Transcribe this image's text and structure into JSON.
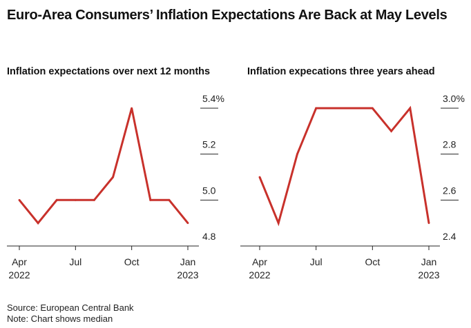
{
  "header": {
    "title": "Euro-Area Consumers’ Inflation Expectations Are Back at May Levels"
  },
  "footer": {
    "source": "Source: European Central Bank",
    "note": "Note: Chart shows median"
  },
  "colors": {
    "line": "#c8312b",
    "axis": "#222222",
    "text": "#111111"
  },
  "chart_data": [
    {
      "type": "line",
      "title": "Inflation expectations over next 12 months",
      "x": [
        "2022-04",
        "2022-05",
        "2022-06",
        "2022-07",
        "2022-08",
        "2022-09",
        "2022-10",
        "2022-11",
        "2022-12",
        "2023-01"
      ],
      "series": [
        {
          "values": [
            5.0,
            4.9,
            5.0,
            5.0,
            5.0,
            5.1,
            5.4,
            5.0,
            5.0,
            4.9
          ]
        }
      ],
      "xticks": [
        {
          "x": "2022-04",
          "label": "Apr",
          "sublabel": "2022"
        },
        {
          "x": "2022-07",
          "label": "Jul",
          "sublabel": ""
        },
        {
          "x": "2022-10",
          "label": "Oct",
          "sublabel": ""
        },
        {
          "x": "2023-01",
          "label": "Jan",
          "sublabel": "2023"
        }
      ],
      "yticks": [
        {
          "value": 4.8,
          "label": "4.8"
        },
        {
          "value": 5.0,
          "label": "5.0"
        },
        {
          "value": 5.2,
          "label": "5.2"
        },
        {
          "value": 5.4,
          "label": "5.4%"
        }
      ],
      "ylim": [
        4.8,
        5.4
      ],
      "xlabel": "",
      "ylabel": "",
      "grid": false,
      "y_axis_side": "right"
    },
    {
      "type": "line",
      "title": "Inflation expecations three years ahead",
      "x": [
        "2022-04",
        "2022-05",
        "2022-06",
        "2022-07",
        "2022-08",
        "2022-09",
        "2022-10",
        "2022-11",
        "2022-12",
        "2023-01"
      ],
      "series": [
        {
          "values": [
            2.7,
            2.5,
            2.8,
            3.0,
            3.0,
            3.0,
            3.0,
            2.9,
            3.0,
            2.5
          ]
        }
      ],
      "xticks": [
        {
          "x": "2022-04",
          "label": "Apr",
          "sublabel": "2022"
        },
        {
          "x": "2022-07",
          "label": "Jul",
          "sublabel": ""
        },
        {
          "x": "2022-10",
          "label": "Oct",
          "sublabel": ""
        },
        {
          "x": "2023-01",
          "label": "Jan",
          "sublabel": "2023"
        }
      ],
      "yticks": [
        {
          "value": 2.4,
          "label": "2.4"
        },
        {
          "value": 2.6,
          "label": "2.6"
        },
        {
          "value": 2.8,
          "label": "2.8"
        },
        {
          "value": 3.0,
          "label": "3.0%"
        }
      ],
      "ylim": [
        2.4,
        3.0
      ],
      "xlabel": "",
      "ylabel": "",
      "grid": false,
      "y_axis_side": "right"
    }
  ]
}
